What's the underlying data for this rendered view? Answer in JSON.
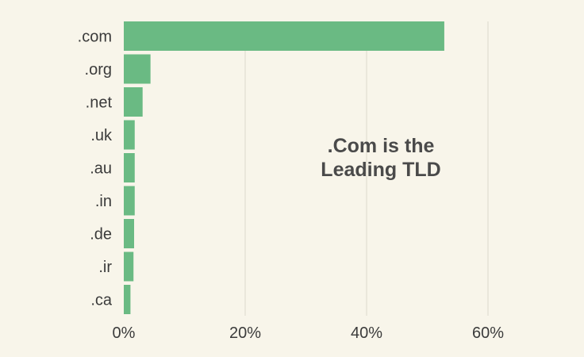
{
  "chart_data": {
    "type": "bar",
    "orientation": "horizontal",
    "categories": [
      ".com",
      ".org",
      ".net",
      ".uk",
      ".au",
      ".in",
      ".de",
      ".ir",
      ".ca"
    ],
    "values": [
      52.8,
      4.4,
      3.1,
      1.8,
      1.8,
      1.8,
      1.7,
      1.6,
      1.1
    ],
    "unit": "%",
    "xlim": [
      0,
      60
    ],
    "xticks": [
      0,
      20,
      40,
      60
    ],
    "xtick_labels": [
      "0%",
      "20%",
      "40%",
      "60%"
    ],
    "grid": "vertical",
    "bar_color": "#6aba83",
    "grid_color": "#dcd9cc",
    "annotation": [
      ".Com is the",
      "Leading TLD"
    ]
  }
}
